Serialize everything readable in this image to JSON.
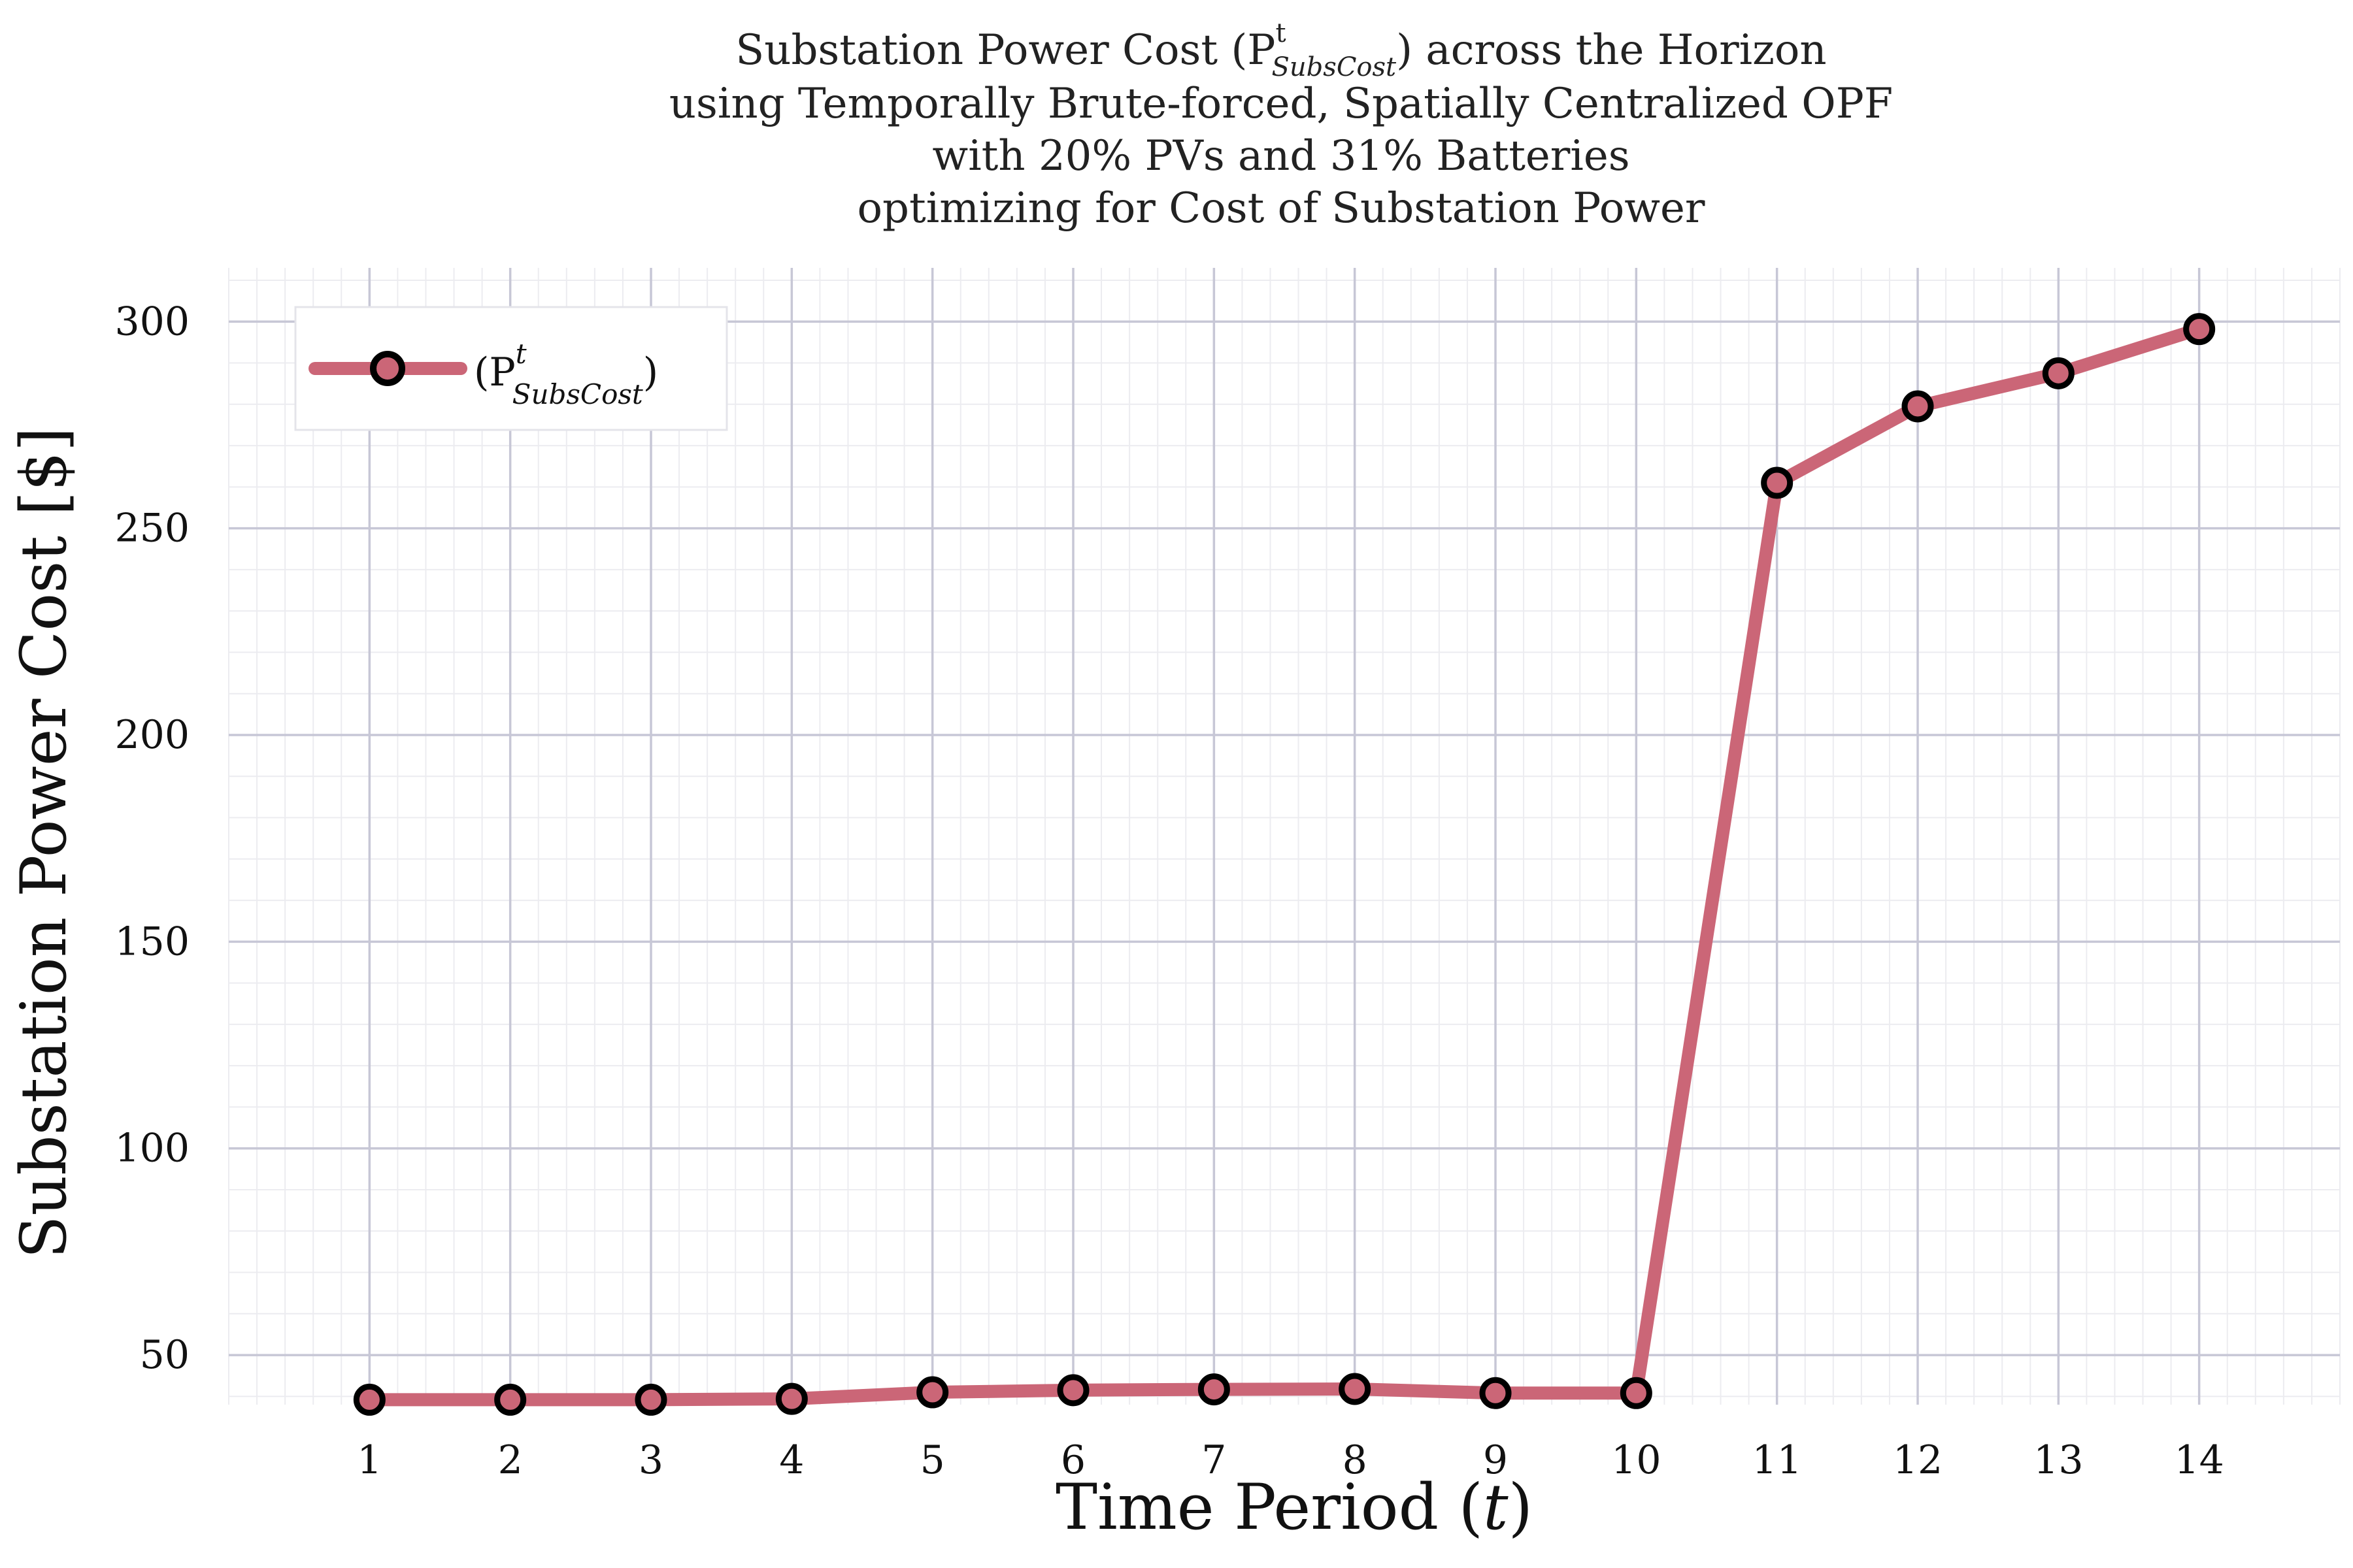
{
  "chart_data": {
    "type": "line",
    "title_lines": [
      "Substation Power Cost (P",
      "using Temporally Brute-forced, Spatially Centralized OPF",
      "with 20% PVs and 31% Batteries",
      "optimizing for Cost of Substation Power"
    ],
    "title_symbol_sup": "t",
    "title_symbol_sub": "SubsCost",
    "title_line1_suffix": ") across the Horizon",
    "xlabel_prefix": "Time Period (",
    "xlabel_var": "t",
    "xlabel_suffix": ")",
    "ylabel": "Substation Power Cost [$]",
    "x": [
      1,
      2,
      3,
      4,
      5,
      6,
      7,
      8,
      9,
      10,
      11,
      12,
      13,
      14
    ],
    "xticks": [
      "1",
      "2",
      "3",
      "4",
      "5",
      "6",
      "7",
      "8",
      "9",
      "10",
      "11",
      "12",
      "13",
      "14"
    ],
    "yticks": [
      50,
      100,
      150,
      200,
      250,
      300
    ],
    "ytick_labels": [
      "50",
      "100",
      "150",
      "200",
      "250",
      "300"
    ],
    "xlim": [
      0,
      15
    ],
    "ylim": [
      38,
      313
    ],
    "series": [
      {
        "name_prefix": "(P",
        "name_sup": "t",
        "name_sub": "SubsCost",
        "name_suffix": ")",
        "values": [
          39.2,
          39.2,
          39.2,
          39.4,
          41.0,
          41.5,
          41.7,
          41.8,
          40.8,
          40.8,
          261.0,
          279.5,
          287.5,
          298.2
        ],
        "color": "#cb6677",
        "marker": "circle",
        "marker_edge_color": "#000000"
      }
    ],
    "grid": true,
    "minor_grid": true,
    "legend_position": "top-left"
  }
}
